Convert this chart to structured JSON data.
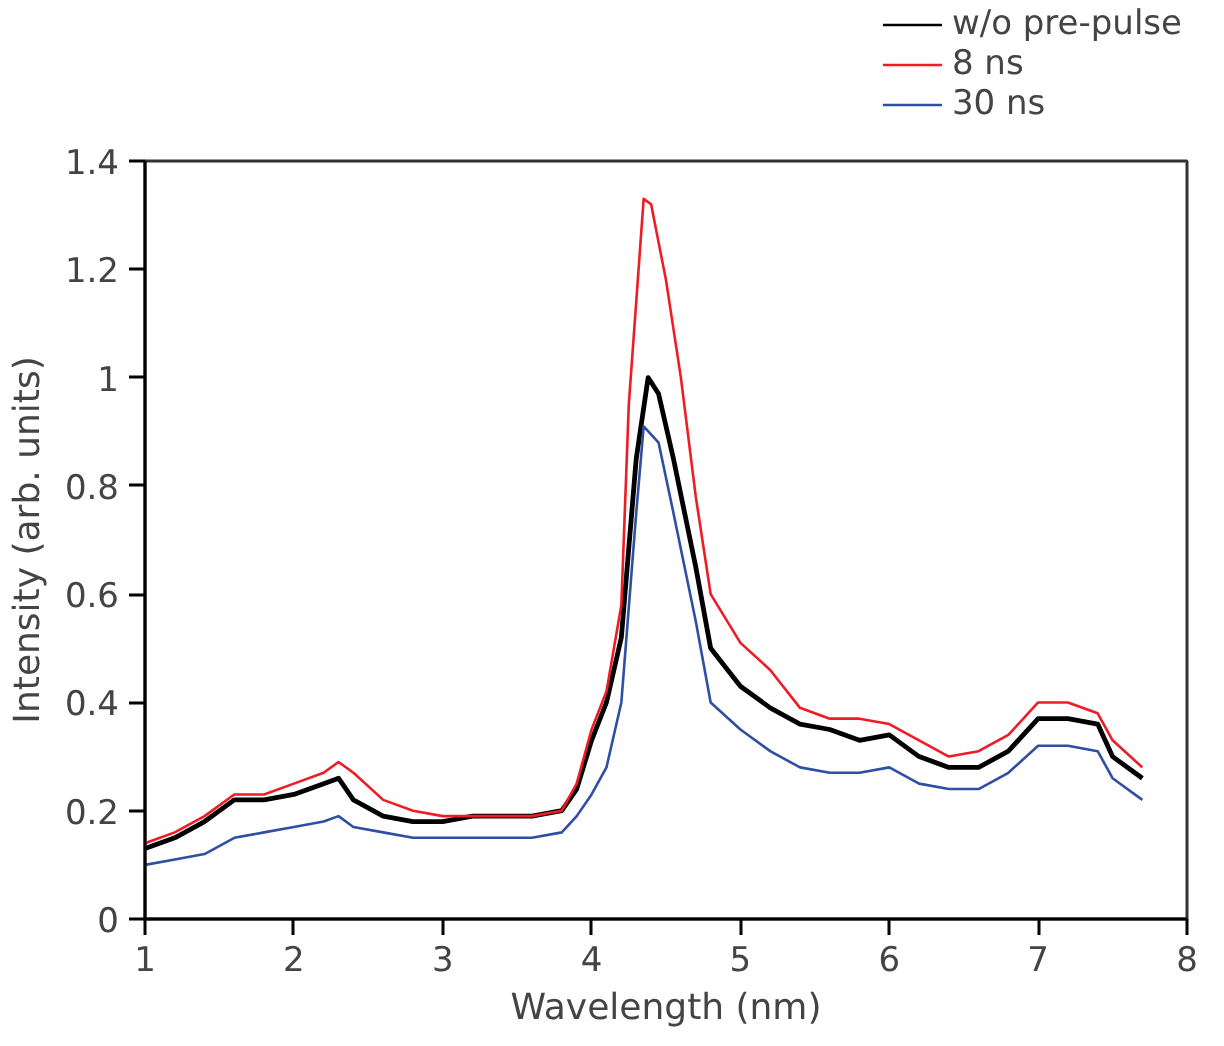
{
  "chart_data": {
    "type": "line",
    "xlabel": "Wavelength (nm)",
    "ylabel": "Intensity (arb. units)",
    "xlim": [
      1,
      8
    ],
    "ylim": [
      0,
      1.4
    ],
    "xticks": [
      1,
      2,
      3,
      4,
      5,
      6,
      7,
      8
    ],
    "yticks": [
      0,
      0.2,
      0.4,
      0.6,
      0.8,
      1,
      1.2,
      1.4
    ],
    "grid": false,
    "legend": "top right",
    "line_style": "solid",
    "series": [
      {
        "name": "w/o pre-pulse",
        "color": "#000000",
        "x": [
          1.0,
          1.2,
          1.4,
          1.6,
          1.8,
          2.0,
          2.2,
          2.3,
          2.4,
          2.6,
          2.8,
          3.0,
          3.2,
          3.4,
          3.6,
          3.8,
          3.9,
          4.0,
          4.1,
          4.2,
          4.3,
          4.38,
          4.45,
          4.55,
          4.7,
          4.8,
          5.0,
          5.2,
          5.4,
          5.6,
          5.8,
          6.0,
          6.2,
          6.4,
          6.6,
          6.8,
          7.0,
          7.2,
          7.4,
          7.5,
          7.7
        ],
        "values": [
          0.13,
          0.15,
          0.18,
          0.22,
          0.22,
          0.23,
          0.25,
          0.26,
          0.22,
          0.19,
          0.18,
          0.18,
          0.19,
          0.19,
          0.19,
          0.2,
          0.24,
          0.33,
          0.4,
          0.52,
          0.85,
          1.0,
          0.97,
          0.85,
          0.65,
          0.5,
          0.43,
          0.39,
          0.36,
          0.35,
          0.33,
          0.34,
          0.3,
          0.28,
          0.28,
          0.31,
          0.37,
          0.37,
          0.36,
          0.3,
          0.26
        ]
      },
      {
        "name": "8 ns",
        "color": "#ee1c25",
        "x": [
          1.0,
          1.2,
          1.4,
          1.6,
          1.8,
          2.0,
          2.2,
          2.3,
          2.4,
          2.6,
          2.8,
          3.0,
          3.2,
          3.4,
          3.6,
          3.8,
          3.9,
          4.0,
          4.1,
          4.2,
          4.25,
          4.35,
          4.4,
          4.5,
          4.6,
          4.7,
          4.8,
          5.0,
          5.2,
          5.4,
          5.6,
          5.8,
          6.0,
          6.2,
          6.4,
          6.6,
          6.8,
          7.0,
          7.2,
          7.4,
          7.5,
          7.7
        ],
        "values": [
          0.14,
          0.16,
          0.19,
          0.23,
          0.23,
          0.25,
          0.27,
          0.29,
          0.27,
          0.22,
          0.2,
          0.19,
          0.19,
          0.19,
          0.19,
          0.2,
          0.25,
          0.35,
          0.42,
          0.58,
          0.95,
          1.33,
          1.32,
          1.18,
          1.0,
          0.78,
          0.6,
          0.51,
          0.46,
          0.39,
          0.37,
          0.37,
          0.36,
          0.33,
          0.3,
          0.31,
          0.34,
          0.4,
          0.4,
          0.38,
          0.33,
          0.28
        ]
      },
      {
        "name": "30 ns",
        "color": "#2e4fa3",
        "x": [
          1.0,
          1.2,
          1.4,
          1.6,
          1.8,
          2.0,
          2.2,
          2.3,
          2.4,
          2.6,
          2.8,
          3.0,
          3.2,
          3.4,
          3.6,
          3.8,
          3.9,
          4.0,
          4.1,
          4.2,
          4.3,
          4.35,
          4.45,
          4.55,
          4.7,
          4.8,
          5.0,
          5.2,
          5.4,
          5.6,
          5.8,
          6.0,
          6.2,
          6.4,
          6.6,
          6.8,
          7.0,
          7.2,
          7.4,
          7.5,
          7.7
        ],
        "values": [
          0.1,
          0.11,
          0.12,
          0.15,
          0.16,
          0.17,
          0.18,
          0.19,
          0.17,
          0.16,
          0.15,
          0.15,
          0.15,
          0.15,
          0.15,
          0.16,
          0.19,
          0.23,
          0.28,
          0.4,
          0.75,
          0.91,
          0.88,
          0.75,
          0.55,
          0.4,
          0.35,
          0.31,
          0.28,
          0.27,
          0.27,
          0.28,
          0.25,
          0.24,
          0.24,
          0.27,
          0.32,
          0.32,
          0.31,
          0.26,
          0.22
        ]
      }
    ]
  }
}
